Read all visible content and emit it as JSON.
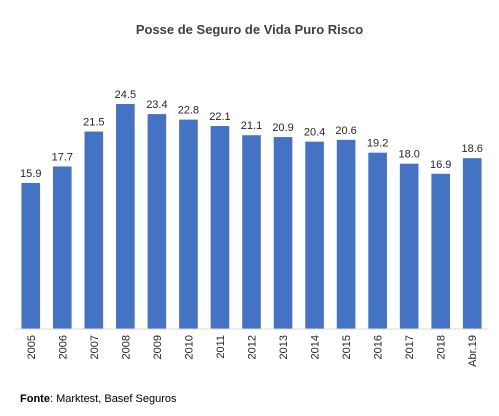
{
  "chart_data": {
    "type": "bar",
    "title": "Posse de Seguro de Vida Puro Risco",
    "xlabel": "",
    "ylabel": "",
    "categories": [
      "2005",
      "2006",
      "2007",
      "2008",
      "2009",
      "2010",
      "2011",
      "2012",
      "2013",
      "2014",
      "2015",
      "2016",
      "2017",
      "2018",
      "Abr.19"
    ],
    "values": [
      15.9,
      17.7,
      21.5,
      24.5,
      23.4,
      22.8,
      22.1,
      21.1,
      20.9,
      20.4,
      20.6,
      19.2,
      18.0,
      16.9,
      18.6
    ],
    "value_labels": [
      "15.9",
      "17.7",
      "21.5",
      "24.5",
      "23.4",
      "22.8",
      "22.1",
      "21.1",
      "20.9",
      "20.4",
      "20.6",
      "19.2",
      "18.0",
      "16.9",
      "18.6"
    ],
    "ylim": [
      0,
      24.5
    ],
    "grid": false,
    "legend": "none",
    "bar_color": "#4472c4"
  },
  "source": {
    "label": "Fonte",
    "text": ": Marktest, Basef Seguros"
  }
}
